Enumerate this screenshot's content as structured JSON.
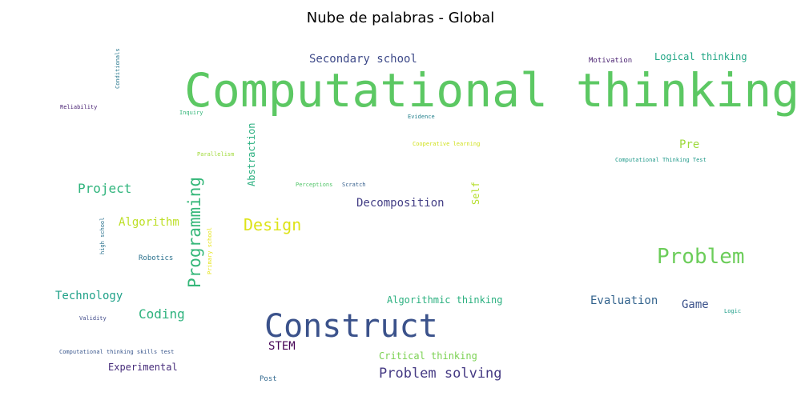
{
  "chart_data": {
    "type": "wordcloud",
    "title": "Nube de palabras - Global",
    "words": [
      {
        "text": "Computational thinking",
        "color": "#5cc863"
      },
      {
        "text": "Construct",
        "color": "#3b528b"
      },
      {
        "text": "Problem",
        "color": "#6ccd5a"
      },
      {
        "text": "Programming",
        "color": "#35b779"
      },
      {
        "text": "Design",
        "color": "#dde318"
      },
      {
        "text": "Problem solving",
        "color": "#443983"
      },
      {
        "text": "Secondary school",
        "color": "#3e4a89"
      },
      {
        "text": "Project",
        "color": "#2fb47c"
      },
      {
        "text": "Decomposition",
        "color": "#433e85"
      },
      {
        "text": "Algorithm",
        "color": "#bddf26"
      },
      {
        "text": "Technology",
        "color": "#1fa188"
      },
      {
        "text": "Coding",
        "color": "#2db27d"
      },
      {
        "text": "Evaluation",
        "color": "#33638d"
      },
      {
        "text": "Game",
        "color": "#3b528b"
      },
      {
        "text": "Logical thinking",
        "color": "#21a685"
      },
      {
        "text": "Pre",
        "color": "#9dd93b"
      },
      {
        "text": "Abstraction",
        "color": "#29af7f"
      },
      {
        "text": "STEM",
        "color": "#440154"
      },
      {
        "text": "Algorithmic thinking",
        "color": "#2ab07f"
      },
      {
        "text": "Critical thinking",
        "color": "#7ad151"
      },
      {
        "text": "Experimental",
        "color": "#472d7b"
      },
      {
        "text": "Self",
        "color": "#b5de2b"
      },
      {
        "text": "Motivation",
        "color": "#481f70"
      },
      {
        "text": "Robotics",
        "color": "#2c728e"
      },
      {
        "text": "Post",
        "color": "#31688e"
      },
      {
        "text": "Conditionals",
        "color": "#2a788e"
      },
      {
        "text": "Reliability",
        "color": "#482173"
      },
      {
        "text": "Inquiry",
        "color": "#34b679"
      },
      {
        "text": "Evidence",
        "color": "#26828e"
      },
      {
        "text": "Parallelism",
        "color": "#a0da39"
      },
      {
        "text": "Cooperative learning",
        "color": "#d0e11c"
      },
      {
        "text": "Computational Thinking Test",
        "color": "#1f998a"
      },
      {
        "text": "Perceptions",
        "color": "#52c569"
      },
      {
        "text": "Scratch",
        "color": "#355f8d"
      },
      {
        "text": "high school",
        "color": "#2c728e"
      },
      {
        "text": "Primary school",
        "color": "#e5e419"
      },
      {
        "text": "Validity",
        "color": "#3e4989"
      },
      {
        "text": "Computational thinking skills test",
        "color": "#39568c"
      },
      {
        "text": "Logic",
        "color": "#1f9e89"
      }
    ]
  }
}
